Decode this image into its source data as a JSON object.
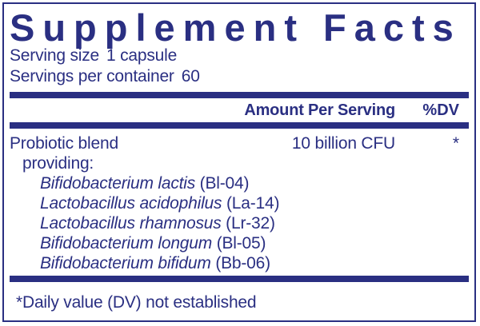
{
  "colors": {
    "navy": "#2A2F82",
    "background": "#FFFFFF"
  },
  "title": "Supplement Facts",
  "serving_info": {
    "serving_size_label": "Serving size",
    "serving_size_value": "1 capsule",
    "servings_per_container_label": "Servings per container",
    "servings_per_container_value": "60"
  },
  "table": {
    "header": {
      "amount_label": "Amount Per Serving",
      "dv_label": "%DV"
    },
    "main_row": {
      "name": "Probiotic blend",
      "amount": "10 billion CFU",
      "dv": "*"
    },
    "providing_label": "providing:",
    "strains": [
      {
        "species": "Bifidobacterium lactis",
        "code": "(Bl-04)"
      },
      {
        "species": "Lactobacillus acidophilus",
        "code": "(La-14)"
      },
      {
        "species": "Lactobacillus rhamnosus",
        "code": "(Lr-32)"
      },
      {
        "species": "Bifidobacterium longum",
        "code": "(Bl-05)"
      },
      {
        "species": "Bifidobacterium bifidum",
        "code": "(Bb-06)"
      }
    ]
  },
  "footnote": "*Daily value (DV) not established"
}
